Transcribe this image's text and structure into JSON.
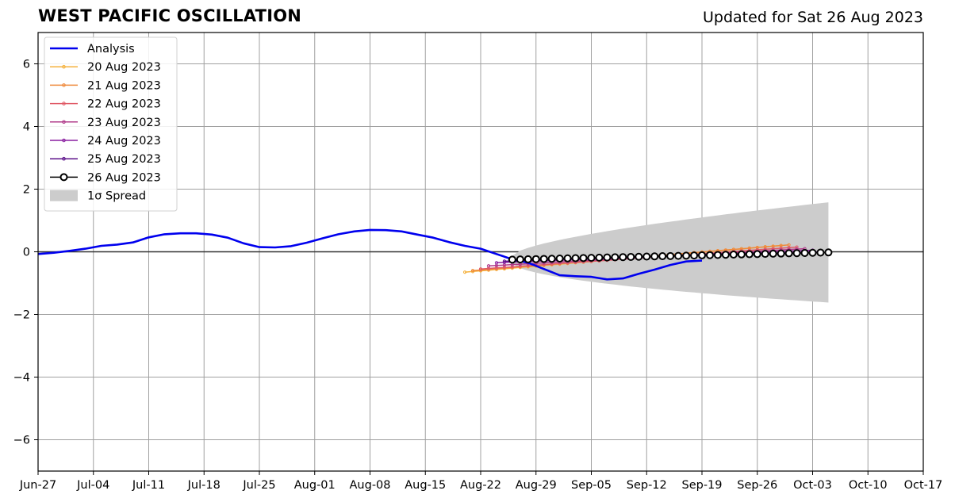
{
  "header": {
    "title": "WEST PACIFIC OSCILLATION",
    "updated": "Updated for Sat 26 Aug 2023"
  },
  "chart_data": {
    "type": "line",
    "title": "WEST PACIFIC OSCILLATION",
    "subtitle": "Updated for Sat 26 Aug 2023",
    "xlabel": "",
    "ylabel": "",
    "grid": true,
    "legend_placement": "top-left",
    "x_start": "2023-06-27",
    "x_end": "2023-10-17",
    "ylim": [
      -7,
      7
    ],
    "x_tick_labels": [
      "Jun-27",
      "Jul-04",
      "Jul-11",
      "Jul-18",
      "Jul-25",
      "Aug-01",
      "Aug-08",
      "Aug-15",
      "Aug-22",
      "Aug-29",
      "Sep-05",
      "Sep-12",
      "Sep-19",
      "Sep-26",
      "Oct-03",
      "Oct-10",
      "Oct-17"
    ],
    "y_ticks": [
      -6,
      -4,
      -2,
      0,
      2,
      4,
      6
    ],
    "y_tick_labels": [
      "−6",
      "−4",
      "−2",
      "0",
      "2",
      "4",
      "6"
    ],
    "analysis": {
      "name": "Analysis",
      "color": "#0000ee",
      "points": [
        [
          "2023-06-27",
          -0.07
        ],
        [
          "2023-06-29",
          -0.03
        ],
        [
          "2023-07-01",
          0.03
        ],
        [
          "2023-07-03",
          0.1
        ],
        [
          "2023-07-05",
          0.19
        ],
        [
          "2023-07-07",
          0.23
        ],
        [
          "2023-07-09",
          0.3
        ],
        [
          "2023-07-11",
          0.46
        ],
        [
          "2023-07-13",
          0.56
        ],
        [
          "2023-07-15",
          0.59
        ],
        [
          "2023-07-17",
          0.59
        ],
        [
          "2023-07-19",
          0.55
        ],
        [
          "2023-07-21",
          0.45
        ],
        [
          "2023-07-23",
          0.27
        ],
        [
          "2023-07-25",
          0.15
        ],
        [
          "2023-07-27",
          0.14
        ],
        [
          "2023-07-29",
          0.18
        ],
        [
          "2023-07-31",
          0.29
        ],
        [
          "2023-08-02",
          0.43
        ],
        [
          "2023-08-04",
          0.56
        ],
        [
          "2023-08-06",
          0.65
        ],
        [
          "2023-08-08",
          0.7
        ],
        [
          "2023-08-10",
          0.69
        ],
        [
          "2023-08-12",
          0.65
        ],
        [
          "2023-08-14",
          0.55
        ],
        [
          "2023-08-16",
          0.45
        ],
        [
          "2023-08-18",
          0.31
        ],
        [
          "2023-08-20",
          0.19
        ],
        [
          "2023-08-22",
          0.1
        ],
        [
          "2023-08-24",
          -0.07
        ],
        [
          "2023-08-26",
          -0.24
        ],
        [
          "2023-08-28",
          -0.35
        ],
        [
          "2023-08-30",
          -0.55
        ],
        [
          "2023-09-01",
          -0.75
        ],
        [
          "2023-09-03",
          -0.78
        ],
        [
          "2023-09-05",
          -0.8
        ],
        [
          "2023-09-07",
          -0.88
        ],
        [
          "2023-09-09",
          -0.85
        ],
        [
          "2023-09-11",
          -0.7
        ],
        [
          "2023-09-13",
          -0.57
        ],
        [
          "2023-09-15",
          -0.42
        ],
        [
          "2023-09-17",
          -0.31
        ],
        [
          "2023-09-19",
          -0.28
        ]
      ]
    },
    "forecasts": [
      {
        "name": "20 Aug 2023",
        "color": "#f5b13c",
        "start": "2023-08-20",
        "start_value": -0.65,
        "end": "2023-09-29",
        "end_value": 0.2
      },
      {
        "name": "21 Aug 2023",
        "color": "#ef8a3c",
        "start": "2023-08-21",
        "start_value": -0.6,
        "end": "2023-09-30",
        "end_value": 0.22
      },
      {
        "name": "22 Aug 2023",
        "color": "#e05a66",
        "start": "2023-08-22",
        "start_value": -0.55,
        "end": "2023-10-01",
        "end_value": 0.15
      },
      {
        "name": "23 Aug 2023",
        "color": "#b03a8a",
        "start": "2023-08-23",
        "start_value": -0.45,
        "end": "2023-10-02",
        "end_value": 0.1
      },
      {
        "name": "24 Aug 2023",
        "color": "#8a1fa0",
        "start": "2023-08-24",
        "start_value": -0.35,
        "end": "2023-10-03",
        "end_value": 0.05
      },
      {
        "name": "25 Aug 2023",
        "color": "#5c108a",
        "start": "2023-08-25",
        "start_value": -0.3,
        "end": "2023-10-04",
        "end_value": 0.0
      }
    ],
    "latest": {
      "name": "26 Aug 2023",
      "color": "#000000",
      "start": "2023-08-26",
      "start_value": -0.25,
      "end": "2023-10-05",
      "end_value": -0.02,
      "marker": "open-circle"
    },
    "spread": {
      "name": "1σ Spread",
      "color": "#cccccc",
      "start": "2023-08-26",
      "end": "2023-10-05",
      "start_half_width": 0.12,
      "end_half_width": 1.6,
      "center_start": -0.25,
      "center_end": -0.02
    },
    "legend": [
      {
        "label": "Analysis",
        "style": "thick-line",
        "color": "#0000ee"
      },
      {
        "label": "20 Aug 2023",
        "style": "dot-line",
        "color": "#f5b13c"
      },
      {
        "label": "21 Aug 2023",
        "style": "dot-line",
        "color": "#ef8a3c"
      },
      {
        "label": "22 Aug 2023",
        "style": "dot-line",
        "color": "#e05a66"
      },
      {
        "label": "23 Aug 2023",
        "style": "dot-line",
        "color": "#b03a8a"
      },
      {
        "label": "24 Aug 2023",
        "style": "dot-line",
        "color": "#8a1fa0"
      },
      {
        "label": "25 Aug 2023",
        "style": "dot-line",
        "color": "#5c108a"
      },
      {
        "label": "26 Aug 2023",
        "style": "open-circle-line",
        "color": "#000000"
      },
      {
        "label": "1σ Spread",
        "style": "patch",
        "color": "#cccccc"
      }
    ]
  }
}
